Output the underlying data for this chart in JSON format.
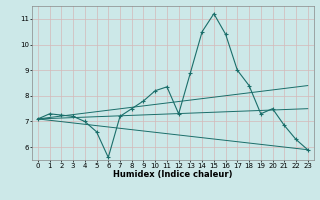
{
  "xlabel": "Humidex (Indice chaleur)",
  "ylabel": "",
  "bg_color": "#cce8e8",
  "grid_color": "#b0d4d4",
  "line_color": "#1a6e6a",
  "xlim": [
    -0.5,
    23.5
  ],
  "ylim": [
    5.5,
    11.5
  ],
  "xticks": [
    0,
    1,
    2,
    3,
    4,
    5,
    6,
    7,
    8,
    9,
    10,
    11,
    12,
    13,
    14,
    15,
    16,
    17,
    18,
    19,
    20,
    21,
    22,
    23
  ],
  "yticks": [
    6,
    7,
    8,
    9,
    10,
    11
  ],
  "series": [
    {
      "x": [
        0,
        1,
        2,
        3,
        4,
        5,
        6,
        7,
        8,
        9,
        10,
        11,
        12,
        13,
        14,
        15,
        16,
        17,
        18,
        19,
        20,
        21,
        22,
        23
      ],
      "y": [
        7.1,
        7.3,
        7.25,
        7.2,
        7.0,
        6.6,
        5.6,
        7.2,
        7.5,
        7.8,
        8.2,
        8.35,
        7.3,
        8.9,
        10.5,
        11.2,
        10.4,
        9.0,
        8.4,
        7.3,
        7.5,
        6.85,
        6.3,
        5.9
      ]
    },
    {
      "x": [
        0,
        23
      ],
      "y": [
        7.1,
        7.5
      ]
    },
    {
      "x": [
        0,
        23
      ],
      "y": [
        7.1,
        5.9
      ]
    },
    {
      "x": [
        0,
        23
      ],
      "y": [
        7.1,
        8.4
      ]
    }
  ]
}
